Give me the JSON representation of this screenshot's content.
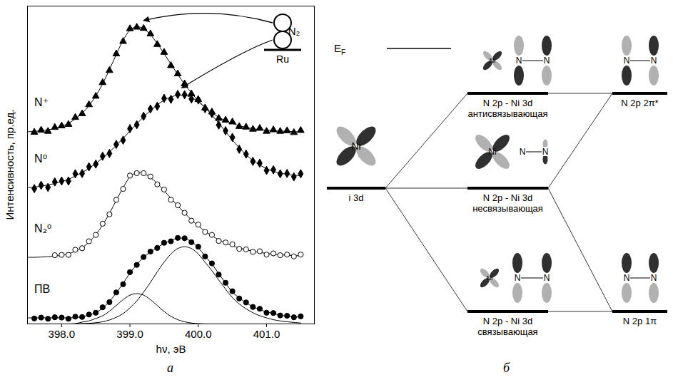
{
  "chart_data": {
    "type": "scatter",
    "panel": "а",
    "x_label": "hν, эВ",
    "y_label": "Интенсивность, пр.ед.",
    "xlim": [
      397.5,
      401.7
    ],
    "xticks": [
      398,
      399,
      400,
      401
    ],
    "ylim": [
      0,
      10.5
    ],
    "tick_labels": "x",
    "x": [
      397.5,
      397.6,
      397.7,
      397.8,
      397.9,
      398.0,
      398.1,
      398.2,
      398.3,
      398.4,
      398.5,
      398.6,
      398.7,
      398.8,
      398.9,
      399.0,
      399.1,
      399.2,
      399.3,
      399.4,
      399.5,
      399.6,
      399.7,
      399.8,
      399.9,
      400.0,
      400.1,
      400.2,
      400.3,
      400.4,
      400.5,
      400.6,
      400.7,
      400.8,
      400.9,
      401.0,
      401.1,
      401.2,
      401.3,
      401.4,
      401.5
    ],
    "series": [
      {
        "name": "N⁺",
        "color": "#000000",
        "marker": "triangle",
        "values": [
          null,
          6.33,
          6.4,
          6.36,
          6.49,
          6.54,
          6.59,
          6.82,
          6.94,
          7.24,
          7.52,
          7.97,
          8.37,
          8.92,
          9.33,
          9.75,
          9.8,
          9.76,
          9.58,
          9.23,
          8.97,
          8.53,
          8.26,
          7.93,
          7.6,
          7.41,
          7.13,
          7.0,
          6.79,
          6.73,
          6.67,
          6.52,
          6.5,
          6.43,
          6.46,
          6.36,
          6.41,
          6.36,
          6.38,
          6.32,
          6.39
        ],
        "fit": [
          6.35,
          6.36,
          6.38,
          6.41,
          6.46,
          6.53,
          6.63,
          6.77,
          6.96,
          7.21,
          7.53,
          7.93,
          8.4,
          8.9,
          9.37,
          9.7,
          9.82,
          9.75,
          9.55,
          9.26,
          8.93,
          8.58,
          8.24,
          7.92,
          7.63,
          7.37,
          7.15,
          6.97,
          6.83,
          6.71,
          6.62,
          6.55,
          6.49,
          6.45,
          6.42,
          6.4,
          6.38,
          6.37,
          6.36,
          6.35,
          6.35
        ]
      },
      {
        "name": "N⁰",
        "color": "#000000",
        "marker": "diamond",
        "values": [
          null,
          4.47,
          4.58,
          4.51,
          4.69,
          4.72,
          4.72,
          4.96,
          4.97,
          5.19,
          5.28,
          5.54,
          5.63,
          5.93,
          6.07,
          6.45,
          6.58,
          6.86,
          7.1,
          7.19,
          7.45,
          7.42,
          7.58,
          7.57,
          7.43,
          7.4,
          7.11,
          6.95,
          6.57,
          6.38,
          6.16,
          5.77,
          5.61,
          5.37,
          5.31,
          5.07,
          5.09,
          4.96,
          4.97,
          4.86,
          4.96
        ],
        "fit": [
          4.5,
          4.52,
          4.55,
          4.59,
          4.64,
          4.7,
          4.78,
          4.88,
          5.0,
          5.14,
          5.3,
          5.48,
          5.68,
          5.9,
          6.13,
          6.37,
          6.61,
          6.84,
          7.05,
          7.24,
          7.39,
          7.5,
          7.55,
          7.55,
          7.48,
          7.34,
          7.14,
          6.9,
          6.63,
          6.35,
          6.08,
          5.82,
          5.59,
          5.4,
          5.25,
          5.13,
          5.04,
          4.98,
          4.94,
          4.91,
          4.9
        ]
      },
      {
        "name": "N₂⁰",
        "color": "#000000",
        "marker": "open_circle",
        "values": [
          null,
          null,
          null,
          null,
          2.27,
          2.28,
          2.28,
          2.45,
          2.5,
          2.73,
          2.94,
          3.31,
          3.62,
          4.1,
          4.46,
          4.9,
          4.98,
          4.98,
          4.87,
          4.61,
          4.44,
          4.1,
          3.92,
          3.67,
          3.41,
          3.28,
          3.04,
          2.94,
          2.74,
          2.69,
          2.63,
          2.48,
          2.46,
          2.38,
          2.4,
          2.29,
          2.33,
          2.27,
          2.29,
          2.23,
          2.29
        ],
        "fit": [
          2.2,
          2.2,
          2.21,
          2.22,
          2.24,
          2.27,
          2.32,
          2.4,
          2.52,
          2.7,
          2.95,
          3.27,
          3.65,
          4.08,
          4.5,
          4.85,
          5.0,
          4.97,
          4.84,
          4.64,
          4.4,
          4.15,
          3.9,
          3.66,
          3.44,
          3.24,
          3.06,
          2.91,
          2.78,
          2.67,
          2.58,
          2.51,
          2.45,
          2.4,
          2.36,
          2.33,
          2.3,
          2.28,
          2.27,
          2.26,
          2.25
        ]
      },
      {
        "name": "ПВ",
        "color": "#000000",
        "marker": "circle",
        "values": [
          null,
          0.18,
          0.21,
          0.17,
          0.22,
          0.21,
          0.17,
          0.24,
          0.23,
          0.31,
          0.37,
          0.55,
          0.72,
          1.04,
          1.31,
          1.71,
          1.95,
          2.21,
          2.39,
          2.51,
          2.68,
          2.73,
          2.84,
          2.83,
          2.7,
          2.55,
          2.23,
          2.0,
          1.63,
          1.36,
          1.08,
          0.84,
          0.71,
          0.56,
          0.5,
          0.37,
          0.36,
          0.28,
          0.27,
          0.22,
          0.25
        ],
        "fit": [
          0.2,
          0.2,
          0.2,
          0.2,
          0.2,
          0.2,
          0.2,
          0.21,
          0.24,
          0.29,
          0.38,
          0.52,
          0.74,
          1.03,
          1.34,
          1.68,
          1.96,
          2.2,
          2.37,
          2.53,
          2.65,
          2.76,
          2.83,
          2.82,
          2.72,
          2.52,
          2.24,
          1.98,
          1.66,
          1.35,
          1.05,
          0.86,
          0.7,
          0.57,
          0.47,
          0.4,
          0.34,
          0.29,
          0.26,
          0.24,
          0.22
        ],
        "components": [
          [
            0,
            0,
            0,
            0,
            0,
            0,
            0,
            0.01,
            0.06,
            0.1,
            0.18,
            0.27,
            0.42,
            0.61,
            0.8,
            0.95,
            1.0,
            0.95,
            0.8,
            0.61,
            0.41,
            0.25,
            0.14,
            0.07,
            0.03,
            0.01,
            0,
            0,
            0,
            0,
            0,
            0,
            0,
            0,
            0,
            0,
            0,
            0,
            0,
            0,
            0
          ],
          [
            0,
            0,
            0,
            0,
            0,
            0,
            0,
            0,
            0.01,
            0.02,
            0.04,
            0.07,
            0.13,
            0.22,
            0.34,
            0.53,
            0.76,
            1.05,
            1.37,
            1.72,
            2.04,
            2.31,
            2.49,
            2.55,
            2.49,
            2.31,
            2.04,
            1.76,
            1.45,
            1.15,
            0.87,
            0.66,
            0.5,
            0.37,
            0.27,
            0.2,
            0.14,
            0.1,
            0.07,
            0.05,
            0.03
          ]
        ]
      }
    ],
    "annotations": [
      "N₂",
      "Ru"
    ]
  },
  "diagram": {
    "panel": "б",
    "fermi_level": {
      "text": "E",
      "subscript": "F"
    },
    "levels": [
      {
        "label": [
          "i 3d"
        ],
        "atoms": [
          "Ni"
        ]
      },
      {
        "label": [
          "N 2p - Ni 3d",
          "антисвязывающая"
        ],
        "atoms": [
          "Ni",
          "N",
          "N"
        ]
      },
      {
        "label": [
          "N 2p - Ni 3d",
          "несвязывающая"
        ],
        "atoms": [
          "Ni",
          "N",
          "N"
        ]
      },
      {
        "label": [
          "N 2p - Ni 3d",
          "связывающая"
        ],
        "atoms": [
          "Ni",
          "N",
          "N"
        ]
      },
      {
        "label": [
          "N 2p 2π*"
        ],
        "atoms": [
          "N",
          "N"
        ]
      },
      {
        "label": [
          "N 2p 1π"
        ],
        "atoms": [
          "N",
          "N"
        ]
      }
    ]
  }
}
